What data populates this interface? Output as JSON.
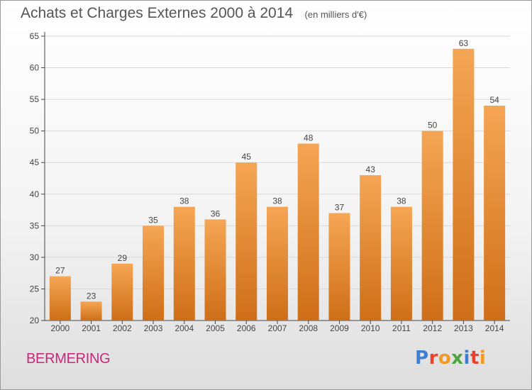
{
  "header": {
    "title": "Achats et Charges Externes 2000 à 2014",
    "unit": "(en milliers d'€)"
  },
  "footer": {
    "commune": "BERMERING",
    "brand": "Proxiti",
    "brand_colors": [
      "#3d7fd1",
      "#e8422d",
      "#f29a1f",
      "#4aa63a",
      "#3d7fd1",
      "#e8422d",
      "#f29a1f"
    ]
  },
  "colors": {
    "bar_top": "#f5a654",
    "bar_bottom": "#cf6e18",
    "grid": "#d8d8d8",
    "axis": "#444444"
  },
  "chart_data": {
    "type": "bar",
    "title": "Achats et Charges Externes 2000 à 2014",
    "subtitle": "(en milliers d'€)",
    "xlabel": "",
    "ylabel": "",
    "categories": [
      "2000",
      "2001",
      "2002",
      "2003",
      "2004",
      "2005",
      "2006",
      "2007",
      "2008",
      "2009",
      "2010",
      "2011",
      "2012",
      "2013",
      "2014"
    ],
    "values": [
      27,
      23,
      29,
      35,
      38,
      36,
      45,
      38,
      48,
      37,
      43,
      38,
      50,
      63,
      54
    ],
    "data_labels": [
      "27",
      "23",
      "29",
      "35",
      "38",
      "36",
      "45",
      "38",
      "48",
      "37",
      "43",
      "38",
      "50",
      "63",
      "54"
    ],
    "ylim": [
      20,
      65
    ],
    "yticks": [
      20,
      25,
      30,
      35,
      40,
      45,
      50,
      55,
      60,
      65
    ],
    "ytick_labels": [
      "20",
      "25",
      "30",
      "35",
      "40",
      "45",
      "50",
      "55",
      "60",
      "65"
    ],
    "grid": true,
    "legend": "none"
  }
}
